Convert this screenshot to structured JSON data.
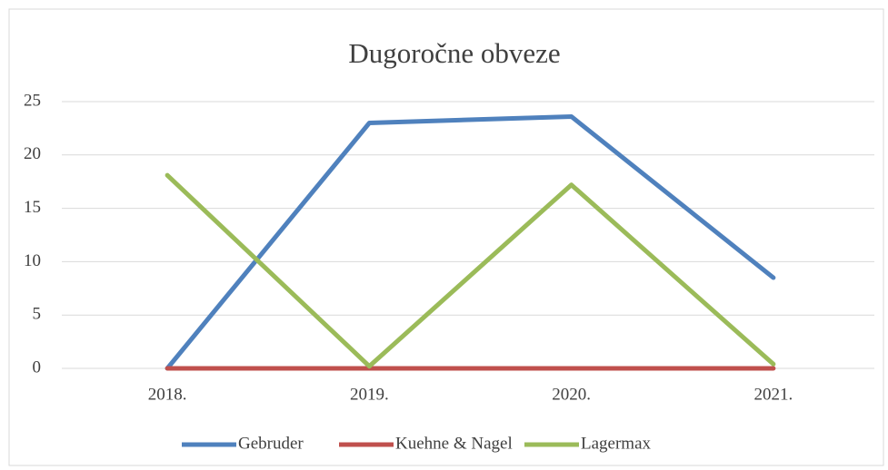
{
  "chart_data": {
    "type": "line",
    "title": "Dugoročne obveze",
    "categories": [
      "2018.",
      "2019.",
      "2020.",
      "2021."
    ],
    "series": [
      {
        "name": "Gebruder",
        "color": "#4f81bd",
        "values": [
          0,
          23,
          23.6,
          8.5
        ]
      },
      {
        "name": "Kuehne & Nagel",
        "color": "#c0504d",
        "values": [
          0,
          0,
          0,
          0
        ]
      },
      {
        "name": "Lagermax",
        "color": "#9bbb59",
        "values": [
          18.1,
          0.2,
          17.2,
          0.4
        ]
      }
    ],
    "ylim": [
      0,
      25
    ],
    "yticks": [
      0,
      5,
      10,
      15,
      20,
      25
    ],
    "grid": true,
    "legend": "bottom"
  }
}
